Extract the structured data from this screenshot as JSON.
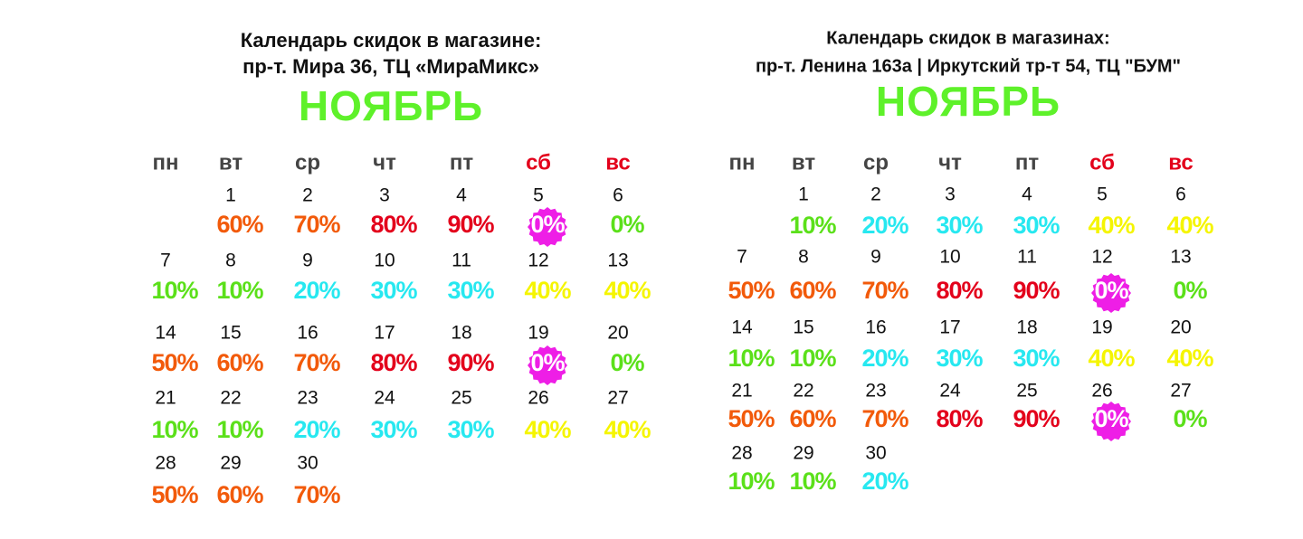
{
  "calendars": [
    {
      "title": [
        "Календарь скидок в магазине:",
        "пр-т. Мира 36, ТЦ «МираМикс»"
      ],
      "month": "НОЯБРЬ",
      "weekdays": [
        {
          "label": "пн",
          "color": "#444444"
        },
        {
          "label": "вт",
          "color": "#444444"
        },
        {
          "label": "ср",
          "color": "#444444"
        },
        {
          "label": "чт",
          "color": "#444444"
        },
        {
          "label": "пт",
          "color": "#444444"
        },
        {
          "label": "сб",
          "color": "#e3001b"
        },
        {
          "label": "вс",
          "color": "#e3001b"
        }
      ],
      "days": [
        {
          "day": 1,
          "discount": "60%",
          "color": "#f25a0a"
        },
        {
          "day": 2,
          "discount": "70%",
          "color": "#f25a0a"
        },
        {
          "day": 3,
          "discount": "80%",
          "color": "#e3001b"
        },
        {
          "day": 4,
          "discount": "90%",
          "color": "#e3001b"
        },
        {
          "day": 5,
          "discount": "0%",
          "color": "#ffffff",
          "badge": true
        },
        {
          "day": 6,
          "discount": "0%",
          "color": "#5be01a"
        },
        {
          "day": 7,
          "discount": "10%",
          "color": "#5be01a"
        },
        {
          "day": 8,
          "discount": "10%",
          "color": "#5be01a"
        },
        {
          "day": 9,
          "discount": "20%",
          "color": "#27e8f0"
        },
        {
          "day": 10,
          "discount": "30%",
          "color": "#27e8f0"
        },
        {
          "day": 11,
          "discount": "30%",
          "color": "#27e8f0"
        },
        {
          "day": 12,
          "discount": "40%",
          "color": "#f5f500"
        },
        {
          "day": 13,
          "discount": "40%",
          "color": "#f5f500"
        },
        {
          "day": 14,
          "discount": "50%",
          "color": "#f25a0a"
        },
        {
          "day": 15,
          "discount": "60%",
          "color": "#f25a0a"
        },
        {
          "day": 16,
          "discount": "70%",
          "color": "#f25a0a"
        },
        {
          "day": 17,
          "discount": "80%",
          "color": "#e3001b"
        },
        {
          "day": 18,
          "discount": "90%",
          "color": "#e3001b"
        },
        {
          "day": 19,
          "discount": "0%",
          "color": "#ffffff",
          "badge": true
        },
        {
          "day": 20,
          "discount": "0%",
          "color": "#5be01a"
        },
        {
          "day": 21,
          "discount": "10%",
          "color": "#5be01a"
        },
        {
          "day": 22,
          "discount": "10%",
          "color": "#5be01a"
        },
        {
          "day": 23,
          "discount": "20%",
          "color": "#27e8f0"
        },
        {
          "day": 24,
          "discount": "30%",
          "color": "#27e8f0"
        },
        {
          "day": 25,
          "discount": "30%",
          "color": "#27e8f0"
        },
        {
          "day": 26,
          "discount": "40%",
          "color": "#f5f500"
        },
        {
          "day": 27,
          "discount": "40%",
          "color": "#f5f500"
        },
        {
          "day": 28,
          "discount": "50%",
          "color": "#f25a0a"
        },
        {
          "day": 29,
          "discount": "60%",
          "color": "#f25a0a"
        },
        {
          "day": 30,
          "discount": "70%",
          "color": "#f25a0a"
        }
      ]
    },
    {
      "title": [
        "Календарь скидок в магазинах:",
        "пр-т. Ленина 163а  | Иркутский тр-т 54, ТЦ \"БУМ\""
      ],
      "month": "НОЯБРЬ",
      "weekdays": [
        {
          "label": "пн",
          "color": "#444444"
        },
        {
          "label": "вт",
          "color": "#444444"
        },
        {
          "label": "ср",
          "color": "#444444"
        },
        {
          "label": "чт",
          "color": "#444444"
        },
        {
          "label": "пт",
          "color": "#444444"
        },
        {
          "label": "сб",
          "color": "#e3001b"
        },
        {
          "label": "вс",
          "color": "#e3001b"
        }
      ],
      "days": [
        {
          "day": 1,
          "discount": "10%",
          "color": "#5be01a"
        },
        {
          "day": 2,
          "discount": "20%",
          "color": "#27e8f0"
        },
        {
          "day": 3,
          "discount": "30%",
          "color": "#27e8f0"
        },
        {
          "day": 4,
          "discount": "30%",
          "color": "#27e8f0"
        },
        {
          "day": 5,
          "discount": "40%",
          "color": "#f5f500"
        },
        {
          "day": 6,
          "discount": "40%",
          "color": "#f5f500"
        },
        {
          "day": 7,
          "discount": "50%",
          "color": "#f25a0a"
        },
        {
          "day": 8,
          "discount": "60%",
          "color": "#f25a0a"
        },
        {
          "day": 9,
          "discount": "70%",
          "color": "#f25a0a"
        },
        {
          "day": 10,
          "discount": "80%",
          "color": "#e3001b"
        },
        {
          "day": 11,
          "discount": "90%",
          "color": "#e3001b"
        },
        {
          "day": 12,
          "discount": "0%",
          "color": "#ffffff",
          "badge": true
        },
        {
          "day": 13,
          "discount": "0%",
          "color": "#5be01a"
        },
        {
          "day": 14,
          "discount": "10%",
          "color": "#5be01a"
        },
        {
          "day": 15,
          "discount": "10%",
          "color": "#5be01a"
        },
        {
          "day": 16,
          "discount": "20%",
          "color": "#27e8f0"
        },
        {
          "day": 17,
          "discount": "30%",
          "color": "#27e8f0"
        },
        {
          "day": 18,
          "discount": "30%",
          "color": "#27e8f0"
        },
        {
          "day": 19,
          "discount": "40%",
          "color": "#f5f500"
        },
        {
          "day": 20,
          "discount": "40%",
          "color": "#f5f500"
        },
        {
          "day": 21,
          "discount": "50%",
          "color": "#f25a0a"
        },
        {
          "day": 22,
          "discount": "60%",
          "color": "#f25a0a"
        },
        {
          "day": 23,
          "discount": "70%",
          "color": "#f25a0a"
        },
        {
          "day": 24,
          "discount": "80%",
          "color": "#e3001b"
        },
        {
          "day": 25,
          "discount": "90%",
          "color": "#e3001b"
        },
        {
          "day": 26,
          "discount": "0%",
          "color": "#ffffff",
          "badge": true
        },
        {
          "day": 27,
          "discount": "0%",
          "color": "#5be01a"
        },
        {
          "day": 28,
          "discount": "10%",
          "color": "#5be01a"
        },
        {
          "day": 29,
          "discount": "10%",
          "color": "#5be01a"
        },
        {
          "day": 30,
          "discount": "20%",
          "color": "#27e8f0"
        }
      ]
    }
  ]
}
